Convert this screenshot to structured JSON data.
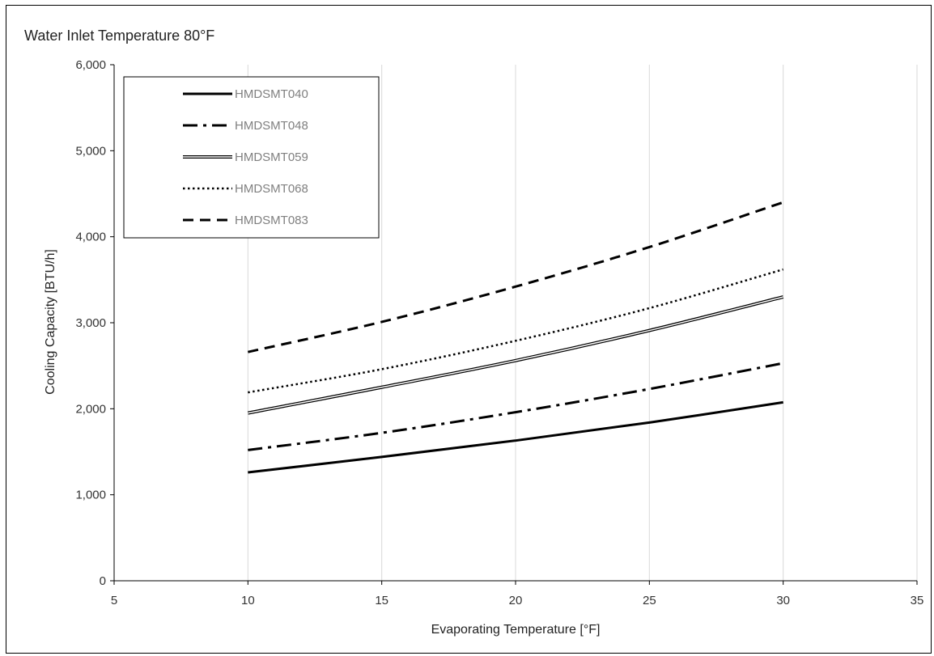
{
  "chart_data": {
    "type": "line",
    "title": "Water Inlet Temperature 80°F",
    "xlabel": "Evaporating Temperature [°F]",
    "ylabel": "Cooling  Capacity [BTU/h]",
    "xlim": [
      5,
      35
    ],
    "ylim": [
      0,
      6000
    ],
    "xticks": [
      5,
      10,
      15,
      20,
      25,
      30,
      35
    ],
    "yticks": [
      0,
      1000,
      2000,
      3000,
      4000,
      5000,
      6000
    ],
    "xtick_labels": [
      "5",
      "10",
      "15",
      "20",
      "25",
      "30",
      "35"
    ],
    "ytick_labels": [
      "0",
      "1,000",
      "2,000",
      "3,000",
      "4,000",
      "5,000",
      "6,000"
    ],
    "grid": "vertical",
    "legend_position": "top-left",
    "x": [
      10,
      15,
      20,
      25,
      30
    ],
    "series": [
      {
        "name": "HMDSMT040",
        "style": "solid",
        "color": "#000000",
        "values": [
          1260,
          1440,
          1630,
          1840,
          2075
        ]
      },
      {
        "name": "HMDSMT048",
        "style": "dash-dot",
        "color": "#000000",
        "values": [
          1520,
          1720,
          1960,
          2230,
          2530
        ]
      },
      {
        "name": "HMDSMT059",
        "style": "double",
        "color": "#000000",
        "values": [
          1950,
          2250,
          2560,
          2910,
          3300
        ]
      },
      {
        "name": "HMDSMT068",
        "style": "dotted",
        "color": "#000000",
        "values": [
          2190,
          2460,
          2790,
          3170,
          3620
        ]
      },
      {
        "name": "HMDSMT083",
        "style": "dashed",
        "color": "#000000",
        "values": [
          2660,
          3010,
          3420,
          3880,
          4400
        ]
      }
    ]
  }
}
